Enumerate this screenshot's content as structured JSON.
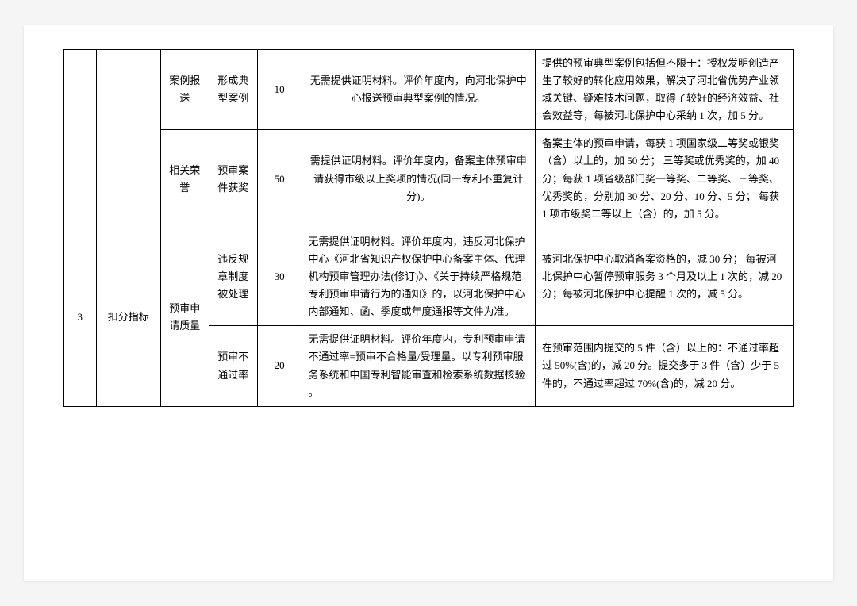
{
  "rows": [
    {
      "col3": "案例报送",
      "col4": "形成典型案例",
      "col5": "10",
      "col6": "无需提供证明材料。评价年度内，向河北保护中心报送预审典型案例的情况。",
      "col7": "提供的预审典型案例包括但不限于：授权发明创造产生了较好的转化应用效果，解决了河北省优势产业领域关键、疑难技术问题，取得了较好的经济效益、社会效益等，每被河北保护中心采纳 1 次，加 5 分。"
    },
    {
      "col3": "相关荣誉",
      "col4": "预审案件获奖",
      "col5": "50",
      "col6": "需提供证明材料。评价年度内，备案主体预审申请获得市级以上奖项的情况(同一专利不重复计分)。",
      "col7": "备案主体的预审申请，每获 1 项国家级二等奖或银奖（含）以上的，加 50 分； 三等奖或优秀奖的，加 40 分；每获 1 项省级部门奖一等奖、二等奖、三等奖、优秀奖的，分别加 30 分、20 分、10 分、5 分；\n每获 1 项市级奖二等以上（含）的，加 5 分。"
    },
    {
      "num": "3",
      "category": "扣分指标",
      "subcat": "预审申请质量",
      "col4": "违反规章制度被处理",
      "col5": "30",
      "col6": "无需提供证明材料。评价年度内，违反河北保护中心《河北省知识产权保护中心备案主体、代理机构预审管理办法(修订)》、《关于持续严格规范专利预审申请行为的通知》的，以河北保护中心内部通知、函、季度或年度通报等文件为准。",
      "col7": "被河北保护中心取消备案资格的，减 30 分；  每被河北保护中心暂停预审服务 3 个月及以上 1 次的，减 20 分；每被河北保护中心提醒 1 次的，减 5 分。"
    },
    {
      "col4": "预审不通过率",
      "col5": "20",
      "col6": "无需提供证明材料。评价年度内，专利预审申请不通过率=预审不合格量/受理量。以专利预审服务系统和中国专利智能审查和检索系统数据核验 。",
      "col7": "在预审范围内提交的 5 件（含）以上的：不通过率超过 50%(含)的，减 20 分。提交多于 3 件（含）少于 5 件的，不通过率超过 70%(含)的，减 20 分。"
    }
  ]
}
